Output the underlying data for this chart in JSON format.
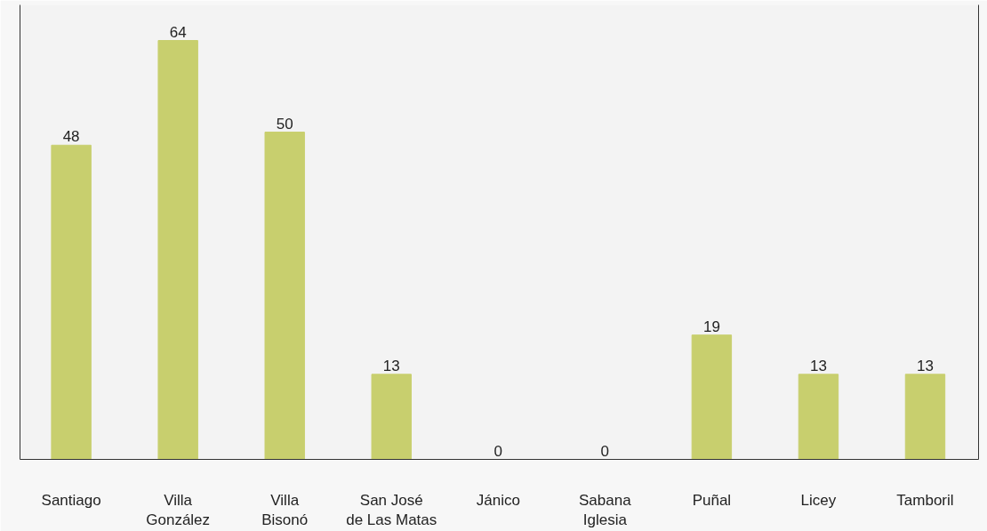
{
  "chart_data": {
    "type": "bar",
    "categories": [
      "Santiago",
      "Villa\nGonzález",
      "Villa\nBisonó",
      "San José\nde Las Matas",
      "Jánico",
      "Sabana\nIglesia",
      "Puñal",
      "Licey",
      "Tamboril"
    ],
    "values": [
      48,
      64,
      50,
      13,
      0,
      0,
      19,
      13,
      13
    ],
    "color": "#c8cf6e",
    "data_labels": true,
    "grid": false
  }
}
